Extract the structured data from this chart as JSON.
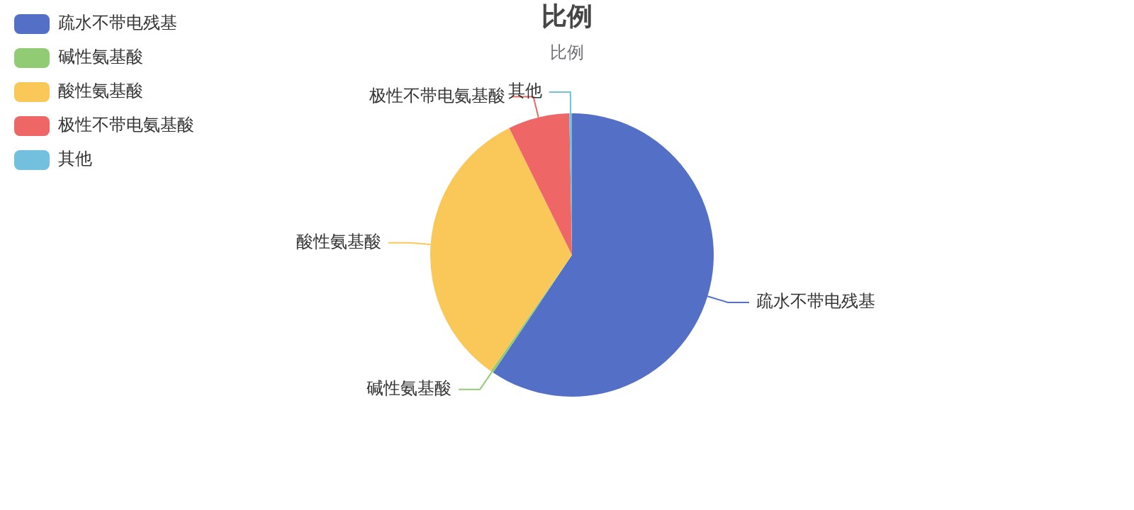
{
  "chart_data": {
    "type": "pie",
    "title": "比例",
    "subtitle": "比例",
    "categories": [
      "疏水不带电残基",
      "碱性氨基酸",
      "酸性氨基酸",
      "极性不带电氨基酸",
      "其他"
    ],
    "values": [
      59.4,
      0.3,
      33,
      7,
      0.3
    ],
    "colors": [
      "#5470c6",
      "#91cc75",
      "#fac858",
      "#ee6666",
      "#73c0de"
    ],
    "legend": "top left"
  }
}
